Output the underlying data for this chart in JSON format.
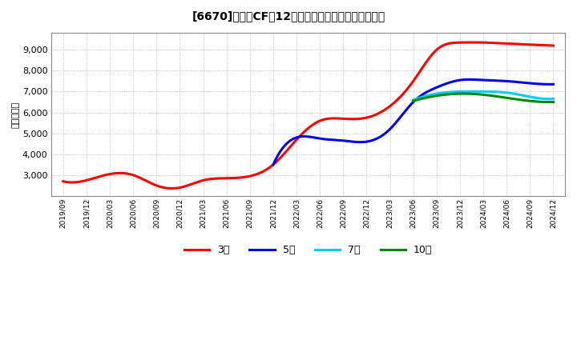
{
  "title": "[6670]　営業CFだ12か月移動合計の標準偏差の推移",
  "ylabel": "（百万円）",
  "background_color": "#ffffff",
  "grid_color": "#aaaaaa",
  "ylim": [
    2000,
    9800
  ],
  "yticks": [
    3000,
    4000,
    5000,
    6000,
    7000,
    8000,
    9000
  ],
  "series": {
    "3年": {
      "color": "#ff0000",
      "data": [
        [
          "2019/09",
          2700
        ],
        [
          "2019/12",
          2750
        ],
        [
          "2020/03",
          3050
        ],
        [
          "2020/06",
          3000
        ],
        [
          "2020/09",
          2500
        ],
        [
          "2020/12",
          2400
        ],
        [
          "2021/03",
          2750
        ],
        [
          "2021/06",
          2850
        ],
        [
          "2021/09",
          2950
        ],
        [
          "2021/12",
          3500
        ],
        [
          "2022/03",
          4700
        ],
        [
          "2022/06",
          5600
        ],
        [
          "2022/09",
          5700
        ],
        [
          "2022/12",
          5750
        ],
        [
          "2023/03",
          6300
        ],
        [
          "2023/06",
          7500
        ],
        [
          "2023/09",
          9000
        ],
        [
          "2023/12",
          9350
        ],
        [
          "2024/03",
          9350
        ],
        [
          "2024/06",
          9300
        ],
        [
          "2024/09",
          9250
        ],
        [
          "2024/12",
          9200
        ]
      ]
    },
    "5年": {
      "color": "#0000ee",
      "data": [
        [
          "2021/12",
          3500
        ],
        [
          "2022/03",
          4800
        ],
        [
          "2022/06",
          4750
        ],
        [
          "2022/09",
          4650
        ],
        [
          "2022/12",
          4600
        ],
        [
          "2023/03",
          5200
        ],
        [
          "2023/06",
          6500
        ],
        [
          "2023/09",
          7200
        ],
        [
          "2023/12",
          7550
        ],
        [
          "2024/03",
          7550
        ],
        [
          "2024/06",
          7500
        ],
        [
          "2024/09",
          7400
        ],
        [
          "2024/12",
          7350
        ]
      ]
    },
    "7年": {
      "color": "#00ccff",
      "data": [
        [
          "2023/06",
          6600
        ],
        [
          "2023/09",
          6900
        ],
        [
          "2023/12",
          7000
        ],
        [
          "2024/03",
          7000
        ],
        [
          "2024/06",
          6950
        ],
        [
          "2024/09",
          6750
        ],
        [
          "2024/12",
          6650
        ]
      ]
    },
    "10年": {
      "color": "#008800",
      "data": [
        [
          "2023/06",
          6550
        ],
        [
          "2023/09",
          6800
        ],
        [
          "2023/12",
          6900
        ],
        [
          "2024/03",
          6850
        ],
        [
          "2024/06",
          6700
        ],
        [
          "2024/09",
          6550
        ],
        [
          "2024/12",
          6500
        ]
      ]
    }
  },
  "legend_order": [
    "3年",
    "5年",
    "7年",
    "10年"
  ],
  "x_labels": [
    "2019/09",
    "2019/12",
    "2020/03",
    "2020/06",
    "2020/09",
    "2020/12",
    "2021/03",
    "2021/06",
    "2021/09",
    "2021/12",
    "2022/03",
    "2022/06",
    "2022/09",
    "2022/12",
    "2023/03",
    "2023/06",
    "2023/09",
    "2023/12",
    "2024/03",
    "2024/06",
    "2024/09",
    "2024/12"
  ]
}
